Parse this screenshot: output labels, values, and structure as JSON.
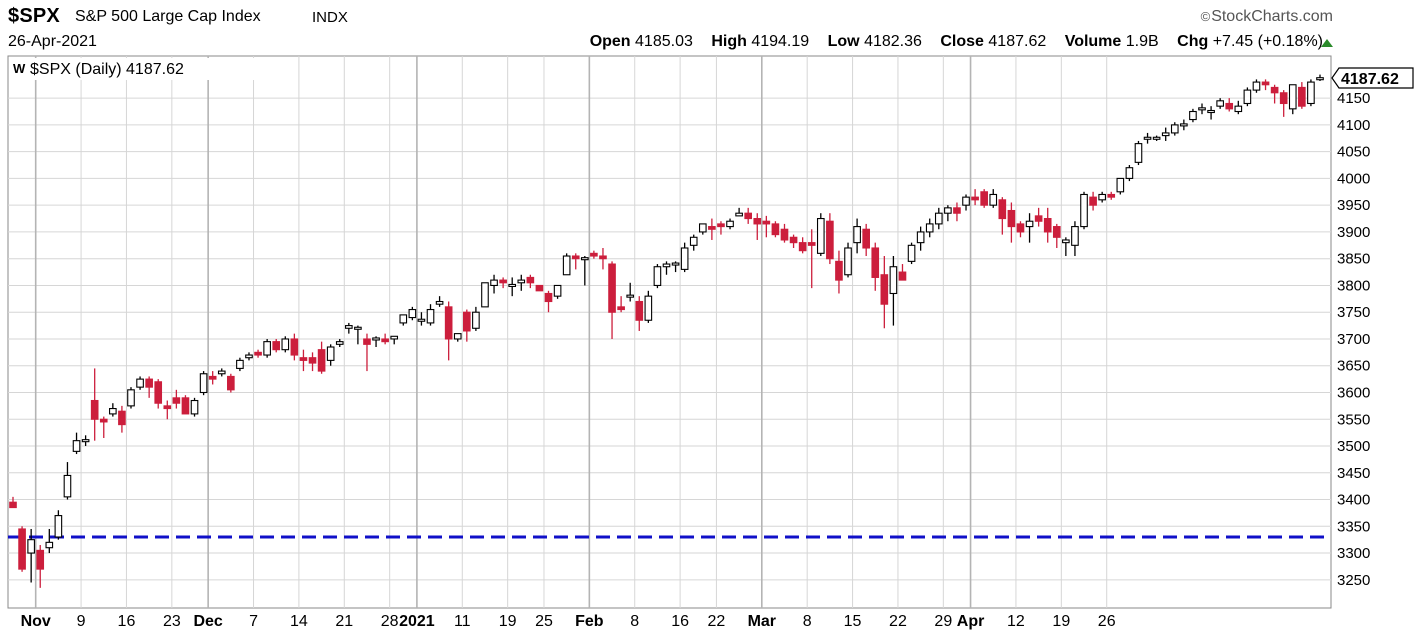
{
  "header": {
    "symbol": "$SPX",
    "name": "S&P 500 Large Cap Index",
    "exchange": "INDX",
    "date": "26-Apr-2021",
    "brand": "StockCharts.com",
    "brand_symbol": "©",
    "quote": {
      "open_label": "Open",
      "open": "4185.03",
      "high_label": "High",
      "high": "4194.19",
      "low_label": "Low",
      "low": "4182.36",
      "close_label": "Close",
      "close": "4187.62",
      "volume_label": "Volume",
      "volume": "1.9B",
      "chg_label": "Chg",
      "chg": "+7.45 (+0.18%)"
    }
  },
  "legend": {
    "marker": "W",
    "text": "$SPX (Daily) 4187.62"
  },
  "price_tag": "4187.62",
  "colors": {
    "up": "#ffffff",
    "down": "#cc1e3c",
    "outline": "#000000",
    "support_line": "#1010c8",
    "grid": "#d6d6d6",
    "month_grid": "#b4b4b4"
  },
  "chart_data": {
    "type": "candlestick",
    "title": "$SPX (Daily) 4187.62",
    "ylim": [
      3220,
      4200
    ],
    "y_ticks": [
      3250,
      3300,
      3350,
      3400,
      3450,
      3500,
      3550,
      3600,
      3650,
      3700,
      3750,
      3800,
      3850,
      3900,
      3950,
      4000,
      4050,
      4100,
      4150
    ],
    "x_ticks": [
      {
        "label": "Nov",
        "bar": 3,
        "major": true
      },
      {
        "label": "9",
        "bar": 8
      },
      {
        "label": "16",
        "bar": 13
      },
      {
        "label": "23",
        "bar": 18
      },
      {
        "label": "Dec",
        "bar": 22,
        "major": true
      },
      {
        "label": "7",
        "bar": 27
      },
      {
        "label": "14",
        "bar": 32
      },
      {
        "label": "21",
        "bar": 37
      },
      {
        "label": "28",
        "bar": 42
      },
      {
        "label": "2021",
        "bar": 45,
        "major": true
      },
      {
        "label": "11",
        "bar": 50
      },
      {
        "label": "19",
        "bar": 55
      },
      {
        "label": "25",
        "bar": 59
      },
      {
        "label": "Feb",
        "bar": 64,
        "major": true
      },
      {
        "label": "8",
        "bar": 69
      },
      {
        "label": "16",
        "bar": 74
      },
      {
        "label": "22",
        "bar": 78
      },
      {
        "label": "Mar",
        "bar": 83,
        "major": true
      },
      {
        "label": "8",
        "bar": 88
      },
      {
        "label": "15",
        "bar": 93
      },
      {
        "label": "22",
        "bar": 98
      },
      {
        "label": "29",
        "bar": 103
      },
      {
        "label": "Apr",
        "bar": 106,
        "major": true
      },
      {
        "label": "12",
        "bar": 111
      },
      {
        "label": "19",
        "bar": 116
      },
      {
        "label": "26",
        "bar": 121
      }
    ],
    "support_line": 3330,
    "grid": true,
    "series": [
      {
        "values": [
          [
            3395,
            3405,
            3385,
            3385
          ],
          [
            3345,
            3350,
            3265,
            3270
          ],
          [
            3300,
            3345,
            3245,
            3325
          ],
          [
            3305,
            3315,
            3235,
            3270
          ],
          [
            3310,
            3345,
            3300,
            3320
          ],
          [
            3330,
            3380,
            3325,
            3370
          ],
          [
            3405,
            3470,
            3400,
            3445
          ],
          [
            3490,
            3525,
            3485,
            3510
          ],
          [
            3510,
            3520,
            3500,
            3510
          ],
          [
            3585,
            3645,
            3510,
            3550
          ],
          [
            3550,
            3555,
            3515,
            3545
          ],
          [
            3560,
            3580,
            3555,
            3570
          ],
          [
            3565,
            3575,
            3525,
            3540
          ],
          [
            3575,
            3610,
            3570,
            3605
          ],
          [
            3610,
            3630,
            3605,
            3625
          ],
          [
            3625,
            3630,
            3590,
            3610
          ],
          [
            3620,
            3625,
            3570,
            3580
          ],
          [
            3575,
            3585,
            3550,
            3570
          ],
          [
            3590,
            3605,
            3570,
            3580
          ],
          [
            3590,
            3595,
            3560,
            3560
          ],
          [
            3560,
            3590,
            3555,
            3585
          ],
          [
            3600,
            3640,
            3595,
            3635
          ],
          [
            3630,
            3640,
            3615,
            3625
          ],
          [
            3635,
            3645,
            3630,
            3640
          ],
          [
            3630,
            3635,
            3600,
            3605
          ],
          [
            3645,
            3665,
            3640,
            3660
          ],
          [
            3665,
            3675,
            3660,
            3670
          ],
          [
            3675,
            3680,
            3665,
            3670
          ],
          [
            3670,
            3700,
            3665,
            3695
          ],
          [
            3695,
            3700,
            3675,
            3680
          ],
          [
            3680,
            3705,
            3675,
            3700
          ],
          [
            3700,
            3710,
            3660,
            3670
          ],
          [
            3665,
            3680,
            3640,
            3660
          ],
          [
            3665,
            3675,
            3640,
            3655
          ],
          [
            3680,
            3695,
            3635,
            3640
          ],
          [
            3660,
            3690,
            3650,
            3685
          ],
          [
            3690,
            3700,
            3685,
            3695
          ],
          [
            3720,
            3730,
            3710,
            3725
          ],
          [
            3720,
            3725,
            3690,
            3720
          ],
          [
            3700,
            3710,
            3640,
            3690
          ],
          [
            3700,
            3705,
            3685,
            3700
          ],
          [
            3700,
            3710,
            3690,
            3695
          ],
          [
            3700,
            3705,
            3690,
            3705
          ],
          [
            3730,
            3745,
            3725,
            3745
          ],
          [
            3740,
            3760,
            3735,
            3755
          ],
          [
            3735,
            3750,
            3725,
            3735
          ],
          [
            3730,
            3765,
            3725,
            3755
          ],
          [
            3765,
            3780,
            3760,
            3770
          ],
          [
            3760,
            3770,
            3660,
            3700
          ],
          [
            3700,
            3710,
            3695,
            3710
          ],
          [
            3750,
            3755,
            3695,
            3715
          ],
          [
            3720,
            3760,
            3715,
            3750
          ],
          [
            3760,
            3805,
            3760,
            3805
          ],
          [
            3800,
            3820,
            3785,
            3810
          ],
          [
            3810,
            3815,
            3795,
            3805
          ],
          [
            3800,
            3815,
            3780,
            3800
          ],
          [
            3805,
            3820,
            3790,
            3810
          ],
          [
            3815,
            3820,
            3795,
            3805
          ],
          [
            3800,
            3800,
            3790,
            3790
          ],
          [
            3785,
            3790,
            3750,
            3770
          ],
          [
            3780,
            3800,
            3775,
            3800
          ],
          [
            3820,
            3860,
            3820,
            3855
          ],
          [
            3855,
            3860,
            3830,
            3850
          ],
          [
            3850,
            3855,
            3800,
            3850
          ],
          [
            3860,
            3865,
            3850,
            3855
          ],
          [
            3855,
            3870,
            3830,
            3850
          ],
          [
            3840,
            3845,
            3700,
            3750
          ],
          [
            3760,
            3780,
            3750,
            3755
          ],
          [
            3780,
            3805,
            3770,
            3780
          ],
          [
            3770,
            3780,
            3715,
            3735
          ],
          [
            3735,
            3790,
            3730,
            3780
          ],
          [
            3800,
            3840,
            3795,
            3835
          ],
          [
            3835,
            3845,
            3820,
            3840
          ],
          [
            3840,
            3845,
            3825,
            3840
          ],
          [
            3830,
            3880,
            3825,
            3870
          ],
          [
            3875,
            3895,
            3865,
            3890
          ],
          [
            3900,
            3915,
            3895,
            3915
          ],
          [
            3910,
            3925,
            3885,
            3905
          ],
          [
            3915,
            3920,
            3895,
            3910
          ],
          [
            3910,
            3925,
            3905,
            3920
          ],
          [
            3930,
            3945,
            3930,
            3935
          ],
          [
            3935,
            3945,
            3915,
            3925
          ],
          [
            3925,
            3935,
            3885,
            3915
          ],
          [
            3920,
            3930,
            3890,
            3915
          ],
          [
            3915,
            3920,
            3890,
            3895
          ],
          [
            3905,
            3915,
            3880,
            3885
          ],
          [
            3890,
            3895,
            3870,
            3880
          ],
          [
            3880,
            3890,
            3860,
            3865
          ],
          [
            3880,
            3905,
            3795,
            3875
          ],
          [
            3860,
            3935,
            3855,
            3925
          ],
          [
            3920,
            3935,
            3840,
            3850
          ],
          [
            3845,
            3865,
            3785,
            3810
          ],
          [
            3820,
            3880,
            3815,
            3870
          ],
          [
            3880,
            3925,
            3860,
            3910
          ],
          [
            3905,
            3915,
            3855,
            3870
          ],
          [
            3870,
            3880,
            3790,
            3815
          ],
          [
            3820,
            3855,
            3720,
            3765
          ],
          [
            3785,
            3855,
            3725,
            3835
          ],
          [
            3825,
            3840,
            3810,
            3810
          ],
          [
            3845,
            3880,
            3840,
            3875
          ],
          [
            3880,
            3910,
            3865,
            3900
          ],
          [
            3900,
            3925,
            3890,
            3915
          ],
          [
            3915,
            3945,
            3905,
            3935
          ],
          [
            3935,
            3950,
            3920,
            3945
          ],
          [
            3945,
            3955,
            3920,
            3935
          ],
          [
            3950,
            3970,
            3940,
            3965
          ],
          [
            3965,
            3980,
            3950,
            3960
          ],
          [
            3975,
            3980,
            3945,
            3950
          ],
          [
            3950,
            3980,
            3945,
            3970
          ],
          [
            3960,
            3965,
            3895,
            3925
          ],
          [
            3940,
            3955,
            3880,
            3910
          ],
          [
            3915,
            3920,
            3890,
            3900
          ],
          [
            3910,
            3935,
            3880,
            3920
          ],
          [
            3930,
            3945,
            3910,
            3920
          ],
          [
            3925,
            3945,
            3880,
            3900
          ],
          [
            3910,
            3915,
            3870,
            3890
          ],
          [
            3880,
            3890,
            3855,
            3885
          ],
          [
            3875,
            3920,
            3855,
            3910
          ],
          [
            3910,
            3975,
            3905,
            3970
          ],
          [
            3965,
            3975,
            3940,
            3950
          ],
          [
            3960,
            3975,
            3955,
            3970
          ],
          [
            3970,
            3975,
            3960,
            3965
          ],
          [
            3975,
            4000,
            3970,
            4000
          ],
          [
            4000,
            4025,
            3995,
            4020
          ],
          [
            4030,
            4070,
            4025,
            4065
          ],
          [
            4075,
            4085,
            4065,
            4075
          ],
          [
            4075,
            4080,
            4070,
            4075
          ],
          [
            4080,
            4095,
            4070,
            4085
          ],
          [
            4085,
            4105,
            4080,
            4100
          ],
          [
            4100,
            4110,
            4090,
            4100
          ],
          [
            4110,
            4130,
            4105,
            4125
          ],
          [
            4130,
            4140,
            4120,
            4130
          ],
          [
            4125,
            4135,
            4110,
            4125
          ],
          [
            4135,
            4150,
            4130,
            4145
          ],
          [
            4140,
            4150,
            4125,
            4130
          ],
          [
            4125,
            4145,
            4120,
            4135
          ],
          [
            4140,
            4170,
            4135,
            4165
          ],
          [
            4165,
            4185,
            4160,
            4180
          ],
          [
            4180,
            4185,
            4165,
            4175
          ],
          [
            4170,
            4175,
            4140,
            4160
          ],
          [
            4160,
            4165,
            4115,
            4140
          ],
          [
            4130,
            4175,
            4120,
            4175
          ],
          [
            4170,
            4180,
            4130,
            4135
          ],
          [
            4140,
            4185,
            4135,
            4180
          ],
          [
            4185,
            4194,
            4182,
            4187.62
          ]
        ]
      }
    ]
  }
}
